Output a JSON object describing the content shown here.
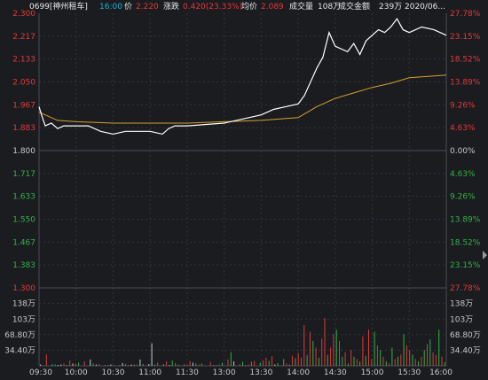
{
  "header": {
    "stock": "0699[神州租车]",
    "time": "16:00",
    "price_label": "价",
    "price": "2.220",
    "change_label": "涨跌",
    "change": "0.420(23.33%)",
    "avg_label": "均价",
    "avg": "2.089",
    "volume_label": "成交量",
    "volume": "108万",
    "amount_label": "成交金额",
    "amount": "239万",
    "date": "2020/06..."
  },
  "colors": {
    "background": "#1b1c20",
    "up": "#e0393a",
    "down": "#2fb344",
    "flat": "#c8c8c8",
    "price_line": "#ffffff",
    "avg_line": "#d4a22c",
    "time_label": "#19b4d2",
    "grid": "#33353b"
  },
  "chart_data": [
    {
      "type": "line",
      "title": "",
      "prev_close": 1.8,
      "ylim": [
        1.3,
        2.3
      ],
      "left_ticks": [
        "2.300",
        "2.217",
        "2.133",
        "2.050",
        "1.967",
        "1.883",
        "1.800",
        "1.717",
        "1.633",
        "1.550",
        "1.467",
        "1.383",
        "1.300"
      ],
      "right_ticks": [
        "27.78%",
        "23.15%",
        "18.52%",
        "13.89%",
        "9.26%",
        "4.63%",
        "0.00%",
        "4.63%",
        "9.26%",
        "13.89%",
        "18.52%",
        "23.15%",
        "27.78%"
      ],
      "x_ticks": [
        "09:30",
        "10:00",
        "10:30",
        "11:00",
        "11:30",
        "13:00",
        "13:30",
        "14:00",
        "14:30",
        "15:00",
        "15:30",
        "16:00"
      ],
      "series": [
        {
          "x": [
            "09:30",
            "09:32",
            "09:35",
            "09:40",
            "09:45",
            "09:50",
            "10:00",
            "10:10",
            "10:20",
            "10:30",
            "10:40",
            "10:50",
            "11:00",
            "11:10",
            "11:15",
            "11:20",
            "11:30",
            "13:00",
            "13:10",
            "13:20",
            "13:30",
            "13:40",
            "13:50",
            "14:00",
            "14:05",
            "14:10",
            "14:15",
            "14:20",
            "14:25",
            "14:30",
            "14:40",
            "14:45",
            "14:50",
            "14:55",
            "15:00",
            "15:05",
            "15:10",
            "15:15",
            "15:20",
            "15:25",
            "15:30",
            "15:40",
            "15:50",
            "16:00"
          ],
          "y": [
            1.96,
            1.93,
            1.89,
            1.9,
            1.88,
            1.89,
            1.89,
            1.89,
            1.87,
            1.86,
            1.87,
            1.87,
            1.87,
            1.86,
            1.88,
            1.89,
            1.89,
            1.9,
            1.91,
            1.92,
            1.93,
            1.95,
            1.96,
            1.97,
            2.0,
            2.05,
            2.1,
            2.14,
            2.23,
            2.18,
            2.16,
            2.19,
            2.15,
            2.2,
            2.22,
            2.24,
            2.23,
            2.25,
            2.28,
            2.24,
            2.23,
            2.25,
            2.24,
            2.22
          ]
        },
        {
          "x": [
            "09:30",
            "09:45",
            "10:00",
            "10:30",
            "11:00",
            "11:30",
            "13:00",
            "13:30",
            "14:00",
            "14:15",
            "14:30",
            "14:45",
            "15:00",
            "15:15",
            "15:30",
            "15:45",
            "16:00"
          ],
          "y": [
            1.94,
            1.91,
            1.905,
            1.9,
            1.9,
            1.9,
            1.905,
            1.91,
            1.92,
            1.96,
            1.99,
            2.01,
            2.03,
            2.045,
            2.065,
            2.07,
            2.075
          ]
        }
      ]
    },
    {
      "type": "bar",
      "title": "",
      "ylim": [
        0,
        172
      ],
      "left_ticks": [
        "138万",
        "103万",
        "68.80万",
        "34.40万"
      ],
      "right_ticks": [
        "138万",
        "103万",
        "68.80万",
        "34.40万"
      ],
      "values": [
        3,
        0,
        25,
        0,
        4,
        3,
        2,
        3,
        5,
        2,
        12,
        5,
        4,
        7,
        0,
        10,
        0,
        14,
        5,
        3,
        4,
        0,
        2,
        2,
        3,
        1,
        0,
        2,
        6,
        4,
        2,
        3,
        3,
        3,
        14,
        4,
        1,
        4,
        50,
        3,
        7,
        0,
        4,
        10,
        2,
        12,
        6,
        3,
        0,
        4,
        2,
        11,
        7,
        5,
        3,
        5,
        0,
        0,
        8,
        2,
        1,
        3,
        7,
        0,
        14,
        30,
        10,
        0,
        4,
        9,
        1,
        3,
        9,
        11,
        0,
        7,
        12,
        18,
        11,
        21,
        3,
        6,
        1,
        15,
        5,
        3,
        22,
        17,
        28,
        18,
        90,
        24,
        75,
        55,
        40,
        18,
        60,
        105,
        24,
        40,
        70,
        80,
        55,
        20,
        30,
        5,
        35,
        20,
        15,
        10,
        65,
        22,
        80,
        15,
        75,
        45,
        35,
        20,
        10,
        5,
        40,
        15,
        20,
        25,
        70,
        45,
        35,
        25,
        15,
        10,
        20,
        35,
        48,
        58,
        30,
        24,
        80,
        20,
        8
      ],
      "colors": [
        "flat",
        "flat",
        "up",
        "flat",
        "down",
        "down",
        "flat",
        "flat",
        "up",
        "down",
        "up",
        "flat",
        "up",
        "down",
        "flat",
        "up",
        "flat",
        "flat",
        "down",
        "flat",
        "up",
        "flat",
        "down",
        "up",
        "flat",
        "down",
        "flat",
        "up",
        "flat",
        "down",
        "up",
        "flat",
        "down",
        "up",
        "flat",
        "down",
        "up",
        "flat",
        "flat",
        "down",
        "up",
        "flat",
        "down",
        "up",
        "flat",
        "down",
        "up",
        "down",
        "flat",
        "up",
        "down",
        "up",
        "flat",
        "down",
        "up",
        "down",
        "flat",
        "flat",
        "up",
        "down",
        "flat",
        "up",
        "down",
        "flat",
        "up",
        "down",
        "flat",
        "flat",
        "up",
        "down",
        "flat",
        "up",
        "down",
        "up",
        "flat",
        "down",
        "up",
        "up",
        "down",
        "up",
        "flat",
        "down",
        "up",
        "down",
        "up",
        "down",
        "up",
        "down",
        "up",
        "up",
        "up",
        "down",
        "up",
        "down",
        "up",
        "down",
        "up",
        "up",
        "down",
        "up",
        "up",
        "down",
        "up",
        "down",
        "up",
        "down",
        "up",
        "down",
        "up",
        "down",
        "up",
        "down",
        "up",
        "up",
        "down",
        "up",
        "down",
        "up",
        "down",
        "up",
        "down",
        "up",
        "down",
        "up",
        "down",
        "up",
        "up",
        "down",
        "up",
        "down",
        "up",
        "down",
        "up",
        "down",
        "up",
        "up",
        "down",
        "up",
        "down",
        "up",
        "up"
      ]
    }
  ]
}
